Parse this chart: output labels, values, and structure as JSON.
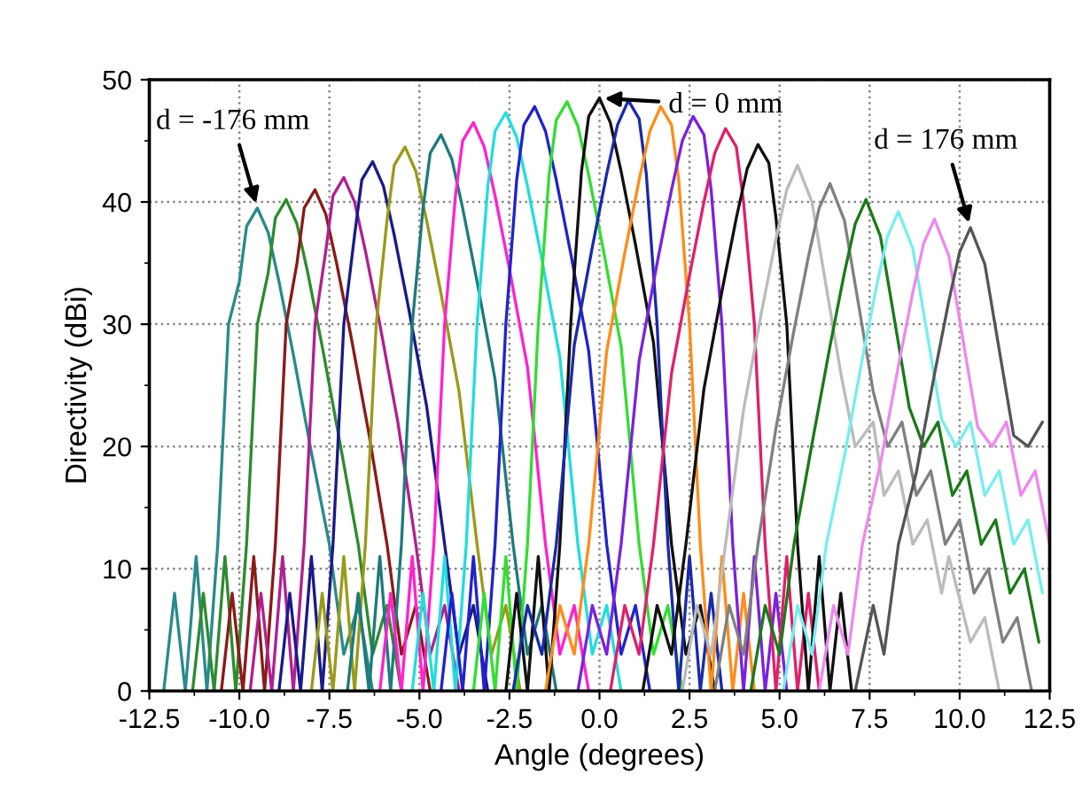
{
  "chart_data": {
    "type": "line",
    "xlabel": "Angle (degrees)",
    "ylabel": "Directivity (dBi)",
    "xlim": [
      -12.5,
      12.5
    ],
    "ylim": [
      0,
      50
    ],
    "xticks": [
      {
        "value": -12.5,
        "label": "-12.5"
      },
      {
        "value": -10,
        "label": "-10.0"
      },
      {
        "value": -7.5,
        "label": "-7.5"
      },
      {
        "value": -5,
        "label": "-5.0"
      },
      {
        "value": -2.5,
        "label": "-2.5"
      },
      {
        "value": 0,
        "label": "0.0"
      },
      {
        "value": 2.5,
        "label": "2.5"
      },
      {
        "value": 5,
        "label": "5.0"
      },
      {
        "value": 7.5,
        "label": "7.5"
      },
      {
        "value": 10,
        "label": "10.0"
      },
      {
        "value": 12.5,
        "label": "12.5"
      }
    ],
    "yticks": [
      0,
      10,
      20,
      30,
      40,
      50
    ],
    "grid": true,
    "marker": "none",
    "line_style": "solid",
    "annotations": [
      {
        "text": "d = -176 mm",
        "x": -9.5,
        "y": 39.5
      },
      {
        "text": "d = 0 mm",
        "x": 0.0,
        "y": 48.5
      },
      {
        "text": "d = 176 mm",
        "x": 10.3,
        "y": 37.9
      }
    ],
    "series": [
      {
        "color": "#2a8a8a",
        "x": [
          -12.1,
          -11.8,
          -11.5,
          -11.2,
          -10.9,
          -10.6,
          -10.3,
          -10.0,
          -9.8,
          -9.5,
          -9.2,
          -8.9,
          -8.5,
          -8.0,
          -7.5,
          -7.1,
          -6.7,
          -6.3
        ],
        "values": [
          0,
          8,
          0,
          11,
          0,
          12,
          30,
          33.5,
          38,
          39.5,
          37.5,
          33.5,
          27.5,
          19.5,
          12,
          3,
          7,
          0
        ]
      },
      {
        "color": "#2e8b2e",
        "x": [
          -11.3,
          -11.0,
          -10.7,
          -10.4,
          -10.1,
          -9.8,
          -9.5,
          -9.2,
          -9.0,
          -8.7,
          -8.4,
          -8.1,
          -7.7,
          -7.2,
          -6.7,
          -6.3,
          -5.9,
          -5.5
        ],
        "values": [
          0,
          8,
          0,
          11,
          0,
          12,
          30,
          34.2,
          38.7,
          40.2,
          38.2,
          34.2,
          28.2,
          20.2,
          12,
          3,
          7,
          0
        ]
      },
      {
        "color": "#8b1a1a",
        "x": [
          -10.5,
          -10.2,
          -9.9,
          -9.6,
          -9.3,
          -9.0,
          -8.7,
          -8.4,
          -8.2,
          -7.9,
          -7.6,
          -7.3,
          -6.9,
          -6.4,
          -5.9,
          -5.5,
          -5.1,
          -4.7
        ],
        "values": [
          0,
          8,
          0,
          11,
          0,
          12,
          30,
          35,
          39.5,
          41,
          39,
          35,
          29,
          21,
          12,
          3,
          7,
          0
        ]
      },
      {
        "color": "#b0208f",
        "x": [
          -9.7,
          -9.4,
          -9.1,
          -8.8,
          -8.5,
          -8.2,
          -7.9,
          -7.6,
          -7.4,
          -7.1,
          -6.8,
          -6.5,
          -6.1,
          -5.6,
          -5.1,
          -4.7,
          -4.3,
          -3.9
        ],
        "values": [
          0,
          8,
          0,
          11,
          0,
          12,
          30,
          36,
          40.5,
          42,
          40,
          36,
          30,
          22,
          12,
          3,
          7,
          0
        ]
      },
      {
        "color": "#1a1a8b",
        "x": [
          -8.9,
          -8.6,
          -8.3,
          -8.0,
          -7.7,
          -7.4,
          -7.1,
          -6.8,
          -6.6,
          -6.3,
          -6.0,
          -5.7,
          -5.3,
          -4.8,
          -4.3,
          -3.9,
          -3.5,
          -3.1
        ],
        "values": [
          0,
          8,
          0,
          11,
          0,
          12,
          30,
          37.3,
          41.8,
          43.3,
          41.3,
          37.3,
          31.3,
          23.3,
          12,
          3,
          7,
          0
        ]
      },
      {
        "color": "#9a9a1a",
        "x": [
          -8.0,
          -7.7,
          -7.4,
          -7.1,
          -6.8,
          -6.5,
          -6.2,
          -5.9,
          -5.7,
          -5.4,
          -5.1,
          -4.8,
          -4.4,
          -3.9,
          -3.4,
          -3.0,
          -2.6,
          -2.2
        ],
        "values": [
          0,
          8,
          0,
          11,
          0,
          12,
          30,
          38.5,
          43,
          44.5,
          42.5,
          38.5,
          32.5,
          24.5,
          12,
          3,
          7,
          0
        ]
      },
      {
        "color": "#1f7a7a",
        "x": [
          -7.0,
          -6.7,
          -6.4,
          -6.1,
          -5.8,
          -5.5,
          -5.2,
          -4.9,
          -4.7,
          -4.4,
          -4.1,
          -3.8,
          -3.4,
          -2.9,
          -2.4,
          -2.0,
          -1.6,
          -1.2
        ],
        "values": [
          0,
          8,
          0,
          11,
          0,
          12,
          30,
          39.5,
          44,
          45.5,
          43.5,
          39.5,
          33.5,
          25.5,
          12,
          3,
          7,
          0
        ]
      },
      {
        "color": "#ff22cc",
        "x": [
          -6.1,
          -5.8,
          -5.5,
          -5.2,
          -4.9,
          -4.6,
          -4.3,
          -4.0,
          -3.8,
          -3.5,
          -3.2,
          -2.9,
          -2.5,
          -2.0,
          -1.5,
          -1.1,
          -0.7,
          -0.3
        ],
        "values": [
          0,
          8,
          0,
          11,
          0,
          12,
          30,
          40.5,
          45,
          46.5,
          44.5,
          40.5,
          34.5,
          26.5,
          12,
          3,
          7,
          0
        ]
      },
      {
        "color": "#22dddd",
        "x": [
          -5.2,
          -4.9,
          -4.6,
          -4.3,
          -4.0,
          -3.7,
          -3.4,
          -3.1,
          -2.9,
          -2.6,
          -2.3,
          -2.0,
          -1.6,
          -1.1,
          -0.6,
          -0.2,
          0.2,
          0.6
        ],
        "values": [
          0,
          8,
          0,
          11,
          0,
          12,
          30,
          41.3,
          45.8,
          47.3,
          45.3,
          41.3,
          35.3,
          27.3,
          12,
          3,
          7,
          0
        ]
      },
      {
        "color": "#2222cc",
        "x": [
          -4.4,
          -4.1,
          -3.8,
          -3.5,
          -3.2,
          -2.9,
          -2.6,
          -2.3,
          -2.1,
          -1.8,
          -1.5,
          -1.2,
          -0.8,
          -0.3,
          0.2,
          0.6,
          1.0,
          1.4
        ],
        "values": [
          0,
          8,
          0,
          11,
          0,
          12,
          30,
          41.8,
          46.3,
          47.8,
          45.8,
          41.8,
          35.8,
          27.8,
          12,
          3,
          7,
          0
        ]
      },
      {
        "color": "#33dd33",
        "x": [
          -3.5,
          -3.2,
          -2.9,
          -2.6,
          -2.3,
          -2.0,
          -1.7,
          -1.4,
          -1.2,
          -0.9,
          -0.6,
          -0.3,
          0.1,
          0.6,
          1.1,
          1.5,
          1.9,
          2.3
        ],
        "values": [
          0,
          8,
          0,
          11,
          0,
          12,
          30,
          42.2,
          46.7,
          48.2,
          46.2,
          42.2,
          36.2,
          28.2,
          12,
          3,
          7,
          0
        ]
      },
      {
        "color": "#111111",
        "x": [
          -2.6,
          -2.3,
          -2.0,
          -1.7,
          -1.4,
          -1.1,
          -0.8,
          -0.5,
          -0.3,
          0.0,
          0.3,
          0.6,
          1.0,
          1.5,
          2.0,
          2.4,
          2.8,
          3.2
        ],
        "values": [
          0,
          8,
          0,
          11,
          0,
          12,
          30,
          42.5,
          47,
          48.5,
          46.5,
          42.5,
          36.5,
          28.5,
          12,
          3,
          7,
          0
        ]
      },
      {
        "color": "#1a2aaa",
        "x": [
          -2.4,
          -2.0,
          -1.6,
          -1.2,
          -0.7,
          -0.2,
          0.2,
          0.5,
          0.8,
          1.1,
          1.3,
          1.6,
          1.9,
          2.2,
          2.5,
          2.8,
          3.1,
          3.4
        ],
        "values": [
          0,
          7,
          3,
          12,
          28.3,
          36.3,
          42.3,
          46.3,
          48.3,
          46.8,
          42.3,
          30,
          12,
          0,
          11,
          0,
          8,
          0
        ]
      },
      {
        "color": "#ff8c1a",
        "x": [
          -1.5,
          -1.1,
          -0.7,
          -0.3,
          0.2,
          0.7,
          1.1,
          1.4,
          1.7,
          2.0,
          2.2,
          2.5,
          2.8,
          3.1,
          3.4,
          3.7,
          4.0,
          4.3
        ],
        "values": [
          0,
          7,
          3,
          12,
          27.8,
          35.8,
          41.8,
          45.8,
          47.8,
          46.3,
          41.8,
          30,
          12,
          0,
          11,
          0,
          8,
          0
        ]
      },
      {
        "color": "#7a22dd",
        "x": [
          -0.6,
          -0.2,
          0.2,
          0.6,
          1.1,
          1.6,
          2.0,
          2.3,
          2.6,
          2.9,
          3.1,
          3.4,
          3.7,
          4.0,
          4.3,
          4.6,
          4.9,
          5.2
        ],
        "values": [
          0,
          7,
          3,
          12,
          27,
          35,
          41,
          45,
          47,
          45.5,
          41,
          30,
          12,
          0,
          11,
          0,
          8,
          0
        ]
      },
      {
        "color": "#e0206a",
        "x": [
          0.3,
          0.7,
          1.1,
          1.5,
          2.0,
          2.5,
          2.9,
          3.2,
          3.5,
          3.8,
          4.0,
          4.3,
          4.6,
          4.9,
          5.2,
          5.5,
          5.8,
          6.1
        ],
        "values": [
          0,
          7,
          3,
          12,
          26,
          34,
          40,
          44,
          46,
          44.5,
          40,
          30,
          12,
          0,
          11,
          0,
          8,
          0
        ]
      },
      {
        "color": "#111111",
        "x": [
          1.2,
          1.6,
          2.0,
          2.4,
          2.9,
          3.4,
          3.8,
          4.1,
          4.4,
          4.7,
          4.9,
          5.2,
          5.5,
          5.8,
          6.1,
          6.4,
          6.7,
          7.0
        ],
        "values": [
          0,
          7,
          3,
          12,
          24.7,
          32.7,
          38.7,
          42.7,
          44.7,
          43.2,
          38.7,
          30,
          12,
          0,
          11,
          0,
          8,
          0
        ]
      },
      {
        "color": "#bbbbbb",
        "x": [
          2.3,
          2.7,
          3.1,
          3.5,
          4.0,
          4.5,
          4.9,
          5.2,
          5.5,
          5.9,
          6.3,
          6.7,
          7.1,
          7.6,
          7.9,
          8.3,
          8.7,
          9.1,
          9.5,
          9.7,
          10.3,
          10.7,
          11.1
        ],
        "values": [
          0,
          7,
          3,
          12,
          23,
          31,
          37,
          41,
          43,
          40,
          33,
          26,
          20,
          22,
          16,
          18,
          12,
          14,
          8,
          11,
          4,
          6,
          0
        ]
      },
      {
        "color": "#808080",
        "x": [
          3.2,
          3.6,
          4.0,
          4.4,
          4.9,
          5.4,
          5.8,
          6.1,
          6.4,
          6.8,
          7.2,
          7.6,
          8.0,
          8.4,
          8.8,
          9.2,
          9.6,
          10.0,
          10.4,
          10.8,
          11.2,
          11.6,
          12.0
        ],
        "values": [
          0,
          7,
          3,
          12,
          21.5,
          29.5,
          35.5,
          39.5,
          41.5,
          38.5,
          31.5,
          24.5,
          20,
          22,
          16,
          18,
          12,
          14,
          8,
          10,
          4,
          6,
          0
        ]
      },
      {
        "color": "#1a7a1a",
        "x": [
          4.2,
          4.6,
          5.0,
          5.4,
          5.9,
          6.4,
          6.8,
          7.1,
          7.4,
          7.8,
          8.2,
          8.6,
          9.0,
          9.4,
          9.8,
          10.2,
          10.6,
          11.0,
          11.4,
          11.8,
          12.2
        ],
        "values": [
          0,
          7,
          3,
          12,
          20.2,
          28.2,
          34.2,
          38.2,
          40.2,
          37.2,
          30.2,
          23.2,
          20,
          22,
          16,
          18,
          12,
          14,
          8,
          10,
          4
        ]
      },
      {
        "color": "#77eeee",
        "x": [
          5.1,
          5.5,
          5.9,
          6.3,
          6.8,
          7.3,
          7.7,
          8.0,
          8.3,
          8.7,
          9.1,
          9.5,
          9.9,
          10.3,
          10.7,
          11.1,
          11.5,
          11.9,
          12.3
        ],
        "values": [
          0,
          7,
          3,
          12,
          19.2,
          27.2,
          33.2,
          37.2,
          39.2,
          36.2,
          29.2,
          22.2,
          20,
          22,
          16,
          18,
          12,
          14,
          8
        ]
      },
      {
        "color": "#ee88ee",
        "x": [
          6.1,
          6.5,
          6.9,
          7.3,
          7.8,
          8.3,
          8.7,
          9.0,
          9.3,
          9.7,
          10.1,
          10.5,
          10.9,
          11.3,
          11.7,
          12.1,
          12.5
        ],
        "values": [
          0,
          7,
          3,
          12,
          18.6,
          26.6,
          32.6,
          36.6,
          38.6,
          35.6,
          28.6,
          21.6,
          20,
          22,
          16,
          18,
          12
        ]
      },
      {
        "color": "#555555",
        "x": [
          7.1,
          7.6,
          7.9,
          8.3,
          8.8,
          9.3,
          9.7,
          10.0,
          10.3,
          10.7,
          11.1,
          11.5,
          11.9,
          12.3
        ],
        "values": [
          0,
          7,
          3,
          12,
          17.9,
          25.9,
          31.9,
          35.9,
          37.9,
          34.9,
          27.9,
          20.9,
          20,
          22
        ]
      }
    ]
  }
}
